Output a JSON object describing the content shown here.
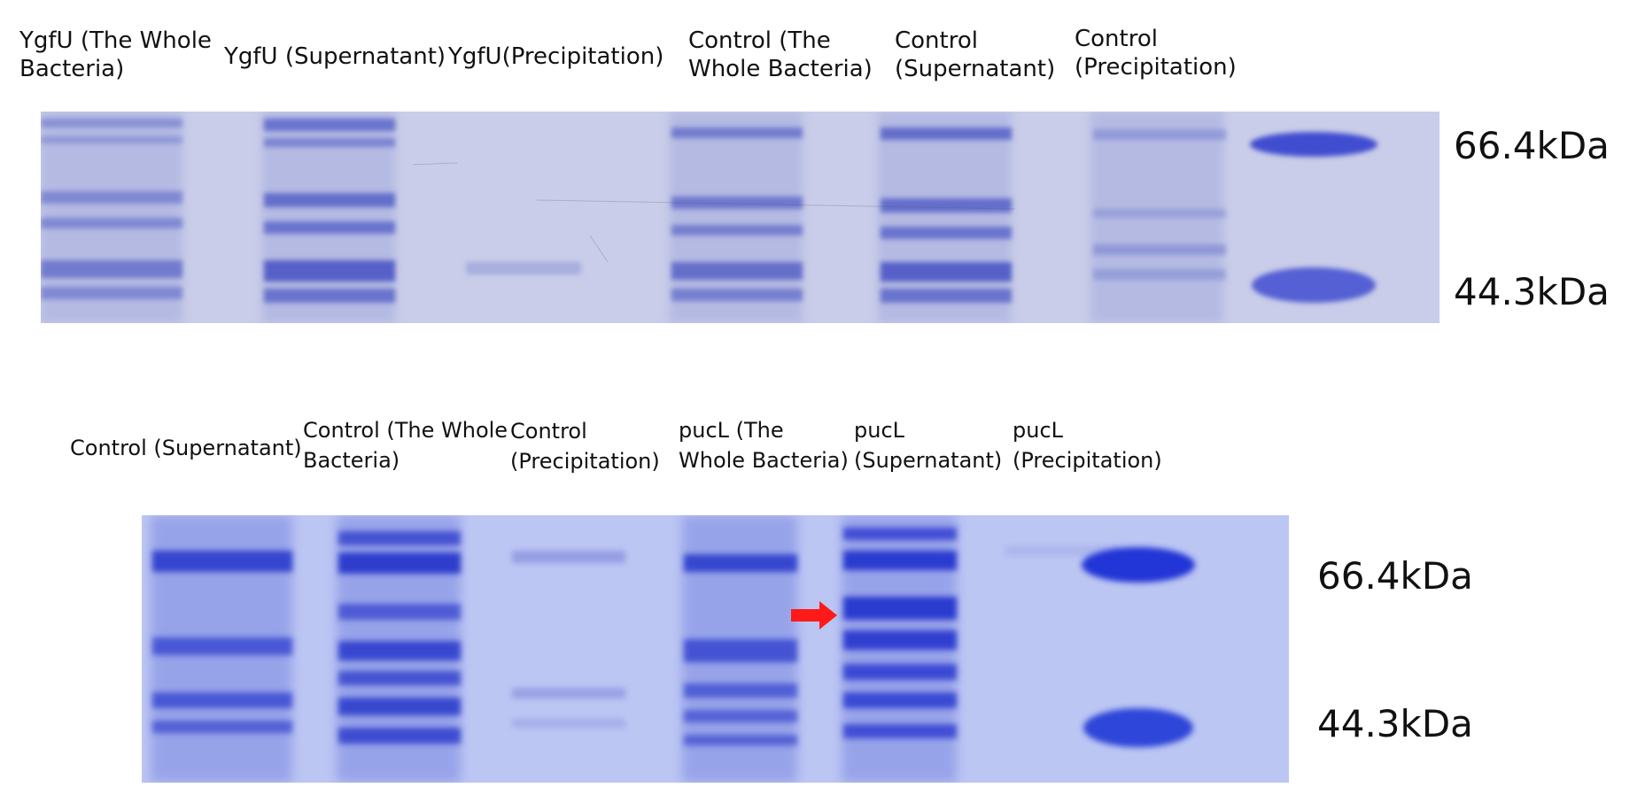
{
  "top_gel": {
    "lane_labels": [
      "YgfU (The Whole\nBacteria)",
      "YgfU (Supernatant)",
      "YgfU(Precipitation)",
      "Control (The\nWhole Bacteria)",
      "Control\n(Supernatant)",
      "Control\n(Precipitation)"
    ],
    "marker_labels": [
      "66.4kDa",
      "44.3kDa"
    ]
  },
  "bottom_gel": {
    "lane_labels": [
      "Control (Supernatant)",
      "Control (The Whole\nBacteria)",
      "Control\n(Precipitation)",
      "pucL (The\nWhole Bacteria)",
      "pucL\n(Supernatant)",
      "pucL\n(Precipitation)"
    ],
    "marker_labels": [
      "66.4kDa",
      "44.3kDa"
    ],
    "arrow_color": "#ff1a1a"
  },
  "colors": {
    "gel_top_bg": "#c9cde9",
    "gel_bottom_bg": "#bcc6f3",
    "band": "#4b57c8",
    "band_dark": "#2c3ad0"
  }
}
